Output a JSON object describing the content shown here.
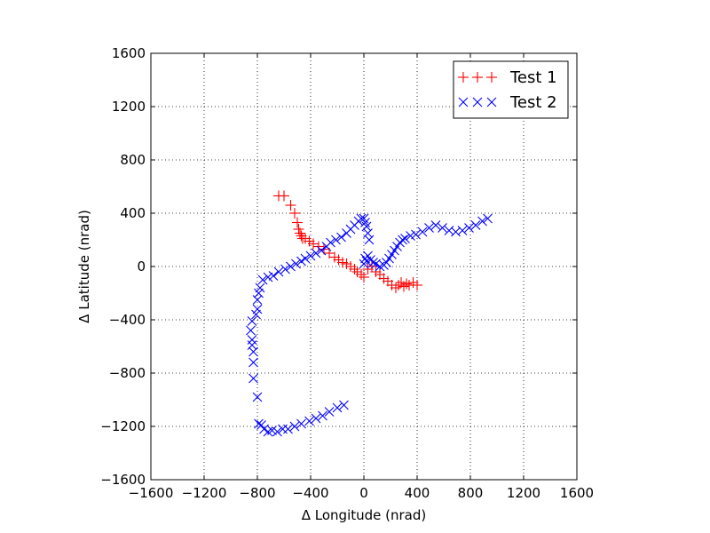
{
  "chart_data": {
    "type": "scatter",
    "title": "",
    "xlabel": "Δ Longitude (nrad)",
    "ylabel": "Δ Latitude (nrad)",
    "xlim": [
      -1600,
      1600
    ],
    "ylim": [
      -1600,
      1600
    ],
    "xticks": [
      -1600,
      -1200,
      -800,
      -400,
      0,
      400,
      800,
      1200,
      1600
    ],
    "yticks": [
      -1600,
      -1200,
      -800,
      -400,
      0,
      400,
      800,
      1200,
      1600
    ],
    "xtick_labels": [
      "−1600",
      "−1200",
      "−800",
      "−400",
      "0",
      "400",
      "800",
      "1200",
      "1600"
    ],
    "ytick_labels": [
      "−1600",
      "−1200",
      "−800",
      "−400",
      "0",
      "400",
      "800",
      "1200",
      "1600"
    ],
    "grid": true,
    "legend_position": "top-right",
    "series": [
      {
        "name": "Test 1",
        "marker": "+",
        "color": "#ff0000",
        "x": [
          -640,
          -600,
          -550,
          -520,
          -500,
          -490,
          -480,
          -470,
          -460,
          -440,
          -410,
          -380,
          -340,
          -300,
          -260,
          -220,
          -190,
          -160,
          -130,
          -100,
          -70,
          -50,
          -20,
          0,
          30,
          60,
          90,
          120,
          150,
          180,
          210,
          240,
          260,
          280,
          300,
          320,
          340,
          370,
          400
        ],
        "y": [
          530,
          530,
          460,
          400,
          330,
          280,
          250,
          230,
          210,
          210,
          190,
          170,
          150,
          130,
          100,
          70,
          50,
          30,
          20,
          0,
          -20,
          -40,
          -60,
          -80,
          -20,
          0,
          -40,
          -60,
          -90,
          -110,
          -140,
          -160,
          -140,
          -120,
          -150,
          -130,
          -140,
          -120,
          -140
        ]
      },
      {
        "name": "Test 2",
        "marker": "x",
        "color": "#0000ff",
        "x": [
          -150,
          -200,
          -260,
          -310,
          -360,
          -410,
          -470,
          -520,
          -570,
          -610,
          -650,
          -690,
          -720,
          -750,
          -770,
          -790,
          -800,
          -830,
          -830,
          -830,
          -840,
          -840,
          -850,
          -840,
          -810,
          -800,
          -800,
          -790,
          -780,
          -760,
          -720,
          -680,
          -640,
          -590,
          -550,
          -510,
          -470,
          -440,
          -400,
          -360,
          -320,
          -280,
          -250,
          -210,
          -170,
          -130,
          -100,
          -70,
          -40,
          -20,
          0,
          10,
          20,
          30,
          40,
          20,
          0,
          10,
          30,
          50,
          70,
          90,
          120,
          150,
          170,
          190,
          210,
          230,
          250,
          270,
          290,
          310,
          350,
          390,
          440,
          490,
          540,
          590,
          640,
          690,
          740,
          790,
          840,
          890,
          930
        ],
        "y": [
          -1040,
          -1060,
          -1090,
          -1120,
          -1140,
          -1160,
          -1180,
          -1200,
          -1220,
          -1220,
          -1240,
          -1230,
          -1240,
          -1220,
          -1190,
          -1180,
          -980,
          -840,
          -720,
          -640,
          -590,
          -550,
          -480,
          -410,
          -360,
          -320,
          -250,
          -200,
          -160,
          -100,
          -80,
          -70,
          -40,
          -20,
          0,
          20,
          40,
          60,
          80,
          100,
          120,
          150,
          180,
          200,
          220,
          250,
          280,
          310,
          340,
          360,
          360,
          330,
          300,
          250,
          200,
          40,
          20,
          60,
          80,
          50,
          30,
          20,
          0,
          10,
          30,
          60,
          90,
          120,
          150,
          180,
          200,
          210,
          230,
          240,
          260,
          290,
          310,
          290,
          270,
          260,
          270,
          290,
          310,
          340,
          360
        ]
      }
    ]
  }
}
